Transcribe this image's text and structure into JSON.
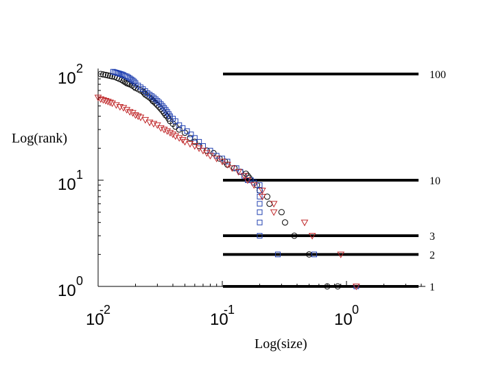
{
  "chart_data": {
    "type": "scatter",
    "title": "",
    "xlabel": "Log(size)",
    "ylabel": "Log(rank)",
    "xscale": "log",
    "yscale": "log",
    "xlim": [
      0.01,
      3.6
    ],
    "ylim": [
      1,
      110
    ],
    "x_ticks": [
      {
        "value": 0.01,
        "base": "10",
        "exp": "-2"
      },
      {
        "value": 0.1,
        "base": "10",
        "exp": "-1"
      },
      {
        "value": 1,
        "base": "10",
        "exp": "0"
      }
    ],
    "y_ticks": [
      {
        "value": 1,
        "base": "10",
        "exp": "0"
      },
      {
        "value": 10,
        "base": "10",
        "exp": "1"
      },
      {
        "value": 100,
        "base": "10",
        "exp": "2"
      }
    ],
    "reference_lines": [
      {
        "rank": 100,
        "label": "100"
      },
      {
        "rank": 10,
        "label": "10"
      },
      {
        "rank": 3,
        "label": "3"
      },
      {
        "rank": 2,
        "label": "2"
      },
      {
        "rank": 1,
        "label": "1"
      }
    ],
    "series": [
      {
        "name": "circles",
        "marker": "circle",
        "color": "#000000",
        "points": [
          [
            0.0105,
            100
          ],
          [
            0.011,
            99
          ],
          [
            0.0115,
            98
          ],
          [
            0.012,
            97
          ],
          [
            0.0125,
            96
          ],
          [
            0.013,
            95
          ],
          [
            0.0136,
            94
          ],
          [
            0.0142,
            92
          ],
          [
            0.0148,
            90
          ],
          [
            0.0155,
            88
          ],
          [
            0.016,
            86
          ],
          [
            0.0165,
            84
          ],
          [
            0.017,
            82
          ],
          [
            0.0175,
            81
          ],
          [
            0.018,
            80
          ],
          [
            0.0188,
            78
          ],
          [
            0.0195,
            76
          ],
          [
            0.02,
            74
          ],
          [
            0.021,
            72
          ],
          [
            0.022,
            70
          ],
          [
            0.023,
            68
          ],
          [
            0.0235,
            66
          ],
          [
            0.024,
            64
          ],
          [
            0.025,
            62
          ],
          [
            0.026,
            60
          ],
          [
            0.027,
            58
          ],
          [
            0.0275,
            56
          ],
          [
            0.028,
            55
          ],
          [
            0.029,
            53
          ],
          [
            0.03,
            51
          ],
          [
            0.031,
            49
          ],
          [
            0.032,
            47
          ],
          [
            0.033,
            45
          ],
          [
            0.034,
            43
          ],
          [
            0.035,
            41
          ],
          [
            0.036,
            40
          ],
          [
            0.037,
            38
          ],
          [
            0.038,
            36
          ],
          [
            0.04,
            34
          ],
          [
            0.042,
            32
          ],
          [
            0.045,
            30
          ],
          [
            0.05,
            28
          ],
          [
            0.055,
            25
          ],
          [
            0.06,
            23
          ],
          [
            0.065,
            21
          ],
          [
            0.075,
            19
          ],
          [
            0.085,
            18
          ],
          [
            0.095,
            16
          ],
          [
            0.105,
            15
          ],
          [
            0.11,
            14
          ],
          [
            0.125,
            13
          ],
          [
            0.14,
            12
          ],
          [
            0.155,
            11.5
          ],
          [
            0.16,
            11
          ],
          [
            0.165,
            10.5
          ],
          [
            0.17,
            10
          ],
          [
            0.19,
            9
          ],
          [
            0.2,
            8
          ],
          [
            0.23,
            7
          ],
          [
            0.24,
            6
          ],
          [
            0.3,
            5
          ],
          [
            0.32,
            4
          ],
          [
            0.38,
            3
          ],
          [
            0.5,
            2
          ],
          [
            0.7,
            1
          ],
          [
            0.85,
            1
          ]
        ]
      },
      {
        "name": "squares",
        "marker": "square",
        "color": "#1f3fb0",
        "points": [
          [
            0.0132,
            105
          ],
          [
            0.0136,
            104
          ],
          [
            0.014,
            103
          ],
          [
            0.0144,
            102
          ],
          [
            0.0148,
            101
          ],
          [
            0.0152,
            100
          ],
          [
            0.0156,
            99
          ],
          [
            0.016,
            98
          ],
          [
            0.0165,
            96
          ],
          [
            0.017,
            95
          ],
          [
            0.0175,
            93
          ],
          [
            0.018,
            91
          ],
          [
            0.0185,
            89
          ],
          [
            0.019,
            87
          ],
          [
            0.0195,
            85
          ],
          [
            0.02,
            82
          ],
          [
            0.021,
            78
          ],
          [
            0.022,
            75
          ],
          [
            0.023,
            72
          ],
          [
            0.024,
            69
          ],
          [
            0.025,
            66
          ],
          [
            0.026,
            64
          ],
          [
            0.027,
            62
          ],
          [
            0.028,
            60
          ],
          [
            0.029,
            58
          ],
          [
            0.03,
            56
          ],
          [
            0.031,
            54
          ],
          [
            0.032,
            52
          ],
          [
            0.033,
            50
          ],
          [
            0.034,
            48
          ],
          [
            0.035,
            46
          ],
          [
            0.036,
            44
          ],
          [
            0.037,
            42
          ],
          [
            0.038,
            40
          ],
          [
            0.04,
            38
          ],
          [
            0.042,
            36
          ],
          [
            0.045,
            33
          ],
          [
            0.048,
            31
          ],
          [
            0.052,
            29
          ],
          [
            0.056,
            27
          ],
          [
            0.06,
            25
          ],
          [
            0.065,
            23
          ],
          [
            0.07,
            21
          ],
          [
            0.08,
            19
          ],
          [
            0.09,
            17
          ],
          [
            0.1,
            16
          ],
          [
            0.11,
            15
          ],
          [
            0.13,
            13
          ],
          [
            0.14,
            12
          ],
          [
            0.15,
            11
          ],
          [
            0.16,
            10
          ],
          [
            0.17,
            10
          ],
          [
            0.18,
            9.5
          ],
          [
            0.2,
            9
          ],
          [
            0.2,
            8
          ],
          [
            0.2,
            7
          ],
          [
            0.2,
            6
          ],
          [
            0.2,
            5
          ],
          [
            0.2,
            4
          ],
          [
            0.2,
            3
          ],
          [
            0.28,
            2
          ],
          [
            0.55,
            2
          ],
          [
            1.2,
            1
          ]
        ]
      },
      {
        "name": "triangles",
        "marker": "triangle-down",
        "color": "#c0282a",
        "points": [
          [
            0.01,
            60
          ],
          [
            0.0105,
            58
          ],
          [
            0.011,
            57
          ],
          [
            0.0115,
            56
          ],
          [
            0.012,
            55
          ],
          [
            0.0125,
            54
          ],
          [
            0.013,
            53
          ],
          [
            0.014,
            51
          ],
          [
            0.015,
            49
          ],
          [
            0.016,
            48
          ],
          [
            0.017,
            46
          ],
          [
            0.018,
            44
          ],
          [
            0.019,
            43
          ],
          [
            0.02,
            41
          ],
          [
            0.021,
            40
          ],
          [
            0.022,
            39
          ],
          [
            0.024,
            37
          ],
          [
            0.026,
            35
          ],
          [
            0.028,
            34
          ],
          [
            0.03,
            33
          ],
          [
            0.032,
            31
          ],
          [
            0.034,
            30
          ],
          [
            0.036,
            29
          ],
          [
            0.038,
            28
          ],
          [
            0.04,
            27
          ],
          [
            0.042,
            26
          ],
          [
            0.045,
            25
          ],
          [
            0.048,
            24
          ],
          [
            0.05,
            23
          ],
          [
            0.055,
            22
          ],
          [
            0.06,
            21
          ],
          [
            0.065,
            20
          ],
          [
            0.07,
            19
          ],
          [
            0.075,
            18
          ],
          [
            0.08,
            17
          ],
          [
            0.09,
            16
          ],
          [
            0.1,
            15
          ],
          [
            0.11,
            14
          ],
          [
            0.12,
            13
          ],
          [
            0.135,
            12
          ],
          [
            0.15,
            11
          ],
          [
            0.16,
            10
          ],
          [
            0.18,
            9
          ],
          [
            0.21,
            8
          ],
          [
            0.21,
            7
          ],
          [
            0.26,
            6
          ],
          [
            0.26,
            5
          ],
          [
            0.46,
            4
          ],
          [
            0.53,
            3
          ],
          [
            0.9,
            2
          ],
          [
            1.2,
            1
          ]
        ]
      }
    ]
  }
}
